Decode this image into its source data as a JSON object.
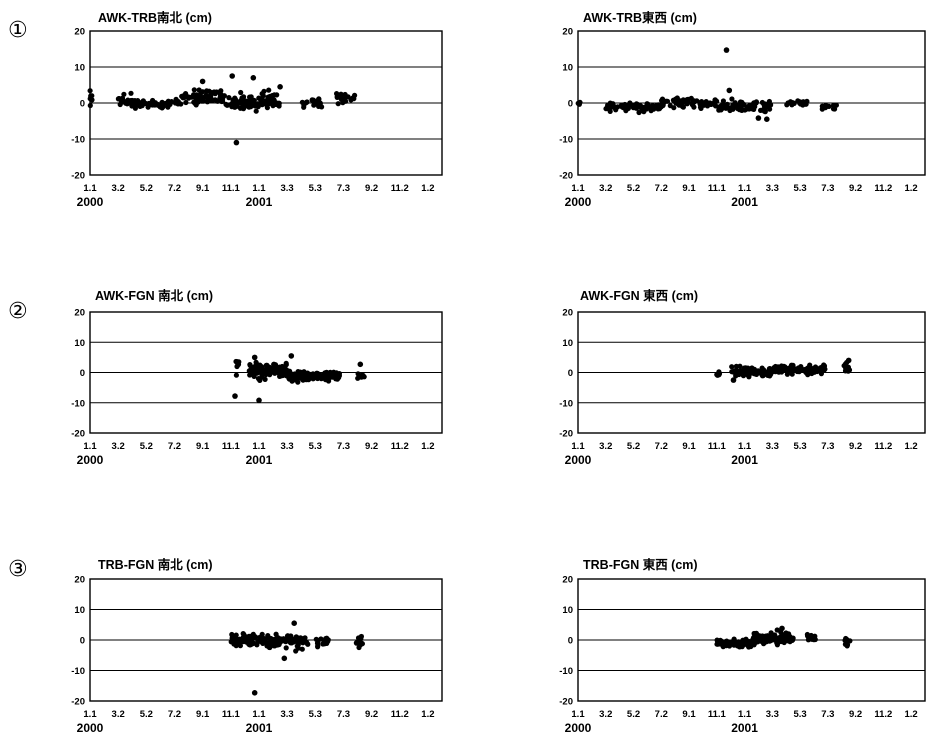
{
  "x_tick_labels": [
    "1.1",
    "3.2",
    "5.2",
    "7.2",
    "9.1",
    "11.1",
    "1.1",
    "3.3",
    "5.3",
    "7.3",
    "9.2",
    "11.2",
    "1.2"
  ],
  "y_tick_labels": [
    "20",
    "10",
    "0",
    "-10",
    "-20"
  ],
  "year_labels": [
    "2000",
    "2001"
  ],
  "panels": [
    {
      "number": "①",
      "left_title": "AWK-TRB南北 (cm)",
      "right_title": "AWK-TRB東西 (cm)"
    },
    {
      "number": "②",
      "left_title": "AWK-FGN 南北 (cm)",
      "right_title": "AWK-FGN 東西 (cm)"
    },
    {
      "number": "③",
      "left_title": "TRB-FGN 南北 (cm)",
      "right_title": "TRB-FGN 東西 (cm)"
    }
  ],
  "chart_data": [
    {
      "type": "scatter",
      "title": "AWK-TRB南北 (cm)",
      "ylim": [
        -20,
        20
      ],
      "yticks": [
        20,
        10,
        0,
        -10,
        -20
      ],
      "x_unit": "months since 2000-01-01",
      "xlim": [
        0,
        25
      ],
      "grid": "horizontal",
      "clusters": [
        {
          "from": 0,
          "to": 0.15,
          "count": 6,
          "mean": 1.5,
          "spread": 1.5
        },
        {
          "from": 2.0,
          "to": 3.0,
          "count": 18,
          "mean": 0.8,
          "spread": 1.3
        },
        {
          "from": 3.0,
          "to": 6.5,
          "count": 45,
          "mean": -0.2,
          "spread": 1.0
        },
        {
          "from": 6.5,
          "to": 9.5,
          "count": 60,
          "mean": 1.6,
          "spread": 1.4
        },
        {
          "from": 9.5,
          "to": 13.5,
          "count": 90,
          "mean": 0.4,
          "spread": 1.6
        },
        {
          "from": 14.8,
          "to": 16.5,
          "count": 22,
          "mean": 0.0,
          "spread": 1.0
        },
        {
          "from": 17.5,
          "to": 18.8,
          "count": 18,
          "mean": 1.2,
          "spread": 1.5
        }
      ],
      "outliers": [
        {
          "x": 10.4,
          "y": -11
        },
        {
          "x": 10.1,
          "y": 7.5
        },
        {
          "x": 11.6,
          "y": 7.0
        },
        {
          "x": 8.0,
          "y": 6.0
        },
        {
          "x": 13.5,
          "y": 4.5
        }
      ]
    },
    {
      "type": "scatter",
      "title": "AWK-TRB東西 (cm)",
      "ylim": [
        -20,
        20
      ],
      "yticks": [
        20,
        10,
        0,
        -10,
        -20
      ],
      "x_unit": "months since 2000-01-01",
      "xlim": [
        0,
        25
      ],
      "grid": "horizontal",
      "clusters": [
        {
          "from": 0,
          "to": 0.15,
          "count": 3,
          "mean": 0.0,
          "spread": 0.3
        },
        {
          "from": 2.0,
          "to": 6.0,
          "count": 70,
          "mean": -1.0,
          "spread": 0.9
        },
        {
          "from": 6.0,
          "to": 10.0,
          "count": 70,
          "mean": 0.0,
          "spread": 0.8
        },
        {
          "from": 10.0,
          "to": 14.0,
          "count": 80,
          "mean": -1.0,
          "spread": 1.2
        },
        {
          "from": 15.0,
          "to": 16.5,
          "count": 18,
          "mean": 0.0,
          "spread": 0.7
        },
        {
          "from": 17.5,
          "to": 18.8,
          "count": 12,
          "mean": -1.0,
          "spread": 0.7
        }
      ],
      "outliers": [
        {
          "x": 10.7,
          "y": 14.7
        },
        {
          "x": 10.9,
          "y": 3.5
        },
        {
          "x": 13.0,
          "y": -4.2
        },
        {
          "x": 13.6,
          "y": -4.5
        }
      ]
    },
    {
      "type": "scatter",
      "title": "AWK-FGN 南北 (cm)",
      "ylim": [
        -20,
        20
      ],
      "yticks": [
        20,
        10,
        0,
        -10,
        -20
      ],
      "x_unit": "months since 2000-01-01",
      "xlim": [
        0,
        25
      ],
      "grid": "horizontal",
      "clusters": [
        {
          "from": 10.3,
          "to": 10.6,
          "count": 8,
          "mean": 1.5,
          "spread": 1.8
        },
        {
          "from": 11.3,
          "to": 14.0,
          "count": 110,
          "mean": 0.5,
          "spread": 1.7
        },
        {
          "from": 14.0,
          "to": 17.8,
          "count": 100,
          "mean": -1.3,
          "spread": 1.1
        },
        {
          "from": 19.0,
          "to": 19.5,
          "count": 8,
          "mean": -1.5,
          "spread": 0.9
        }
      ],
      "outliers": [
        {
          "x": 10.3,
          "y": -7.8
        },
        {
          "x": 12.0,
          "y": -9.2
        },
        {
          "x": 11.7,
          "y": 5.0
        },
        {
          "x": 14.3,
          "y": 5.5
        },
        {
          "x": 19.2,
          "y": 2.7
        }
      ]
    },
    {
      "type": "scatter",
      "title": "AWK-FGN 東西 (cm)",
      "ylim": [
        -20,
        20
      ],
      "yticks": [
        20,
        10,
        0,
        -10,
        -20
      ],
      "x_unit": "months since 2000-01-01",
      "xlim": [
        0,
        25
      ],
      "grid": "horizontal",
      "clusters": [
        {
          "from": 9.8,
          "to": 10.3,
          "count": 5,
          "mean": -0.5,
          "spread": 0.4
        },
        {
          "from": 11.0,
          "to": 14.0,
          "count": 80,
          "mean": 0.3,
          "spread": 1.0
        },
        {
          "from": 14.0,
          "to": 17.8,
          "count": 110,
          "mean": 1.0,
          "spread": 0.9
        },
        {
          "from": 19.0,
          "to": 19.6,
          "count": 10,
          "mean": 1.5,
          "spread": 1.0
        }
      ],
      "outliers": [
        {
          "x": 11.2,
          "y": -2.5
        },
        {
          "x": 19.5,
          "y": 4.0
        }
      ]
    },
    {
      "type": "scatter",
      "title": "TRB-FGN 南北 (cm)",
      "ylim": [
        -20,
        20
      ],
      "yticks": [
        20,
        10,
        0,
        -10,
        -20
      ],
      "x_unit": "months since 2000-01-01",
      "xlim": [
        0,
        25
      ],
      "grid": "horizontal",
      "clusters": [
        {
          "from": 10.0,
          "to": 12.5,
          "count": 80,
          "mean": 0.0,
          "spread": 1.3
        },
        {
          "from": 12.5,
          "to": 15.5,
          "count": 80,
          "mean": -0.6,
          "spread": 1.4
        },
        {
          "from": 16.0,
          "to": 17.0,
          "count": 14,
          "mean": -0.8,
          "spread": 1.1
        },
        {
          "from": 18.9,
          "to": 19.4,
          "count": 12,
          "mean": -0.6,
          "spread": 1.0
        }
      ],
      "outliers": [
        {
          "x": 11.7,
          "y": -17.3
        },
        {
          "x": 14.5,
          "y": 5.5
        },
        {
          "x": 13.8,
          "y": -6.0
        }
      ]
    },
    {
      "type": "scatter",
      "title": "TRB-FGN 東西 (cm)",
      "ylim": [
        -20,
        20
      ],
      "yticks": [
        20,
        10,
        0,
        -10,
        -20
      ],
      "x_unit": "months since 2000-01-01",
      "xlim": [
        0,
        25
      ],
      "grid": "horizontal",
      "clusters": [
        {
          "from": 10.0,
          "to": 12.5,
          "count": 70,
          "mean": -1.0,
          "spread": 0.9
        },
        {
          "from": 12.5,
          "to": 15.5,
          "count": 100,
          "mean": 0.5,
          "spread": 1.3
        },
        {
          "from": 16.5,
          "to": 17.3,
          "count": 12,
          "mean": 0.5,
          "spread": 0.8
        },
        {
          "from": 19.0,
          "to": 19.6,
          "count": 10,
          "mean": -0.5,
          "spread": 1.4
        }
      ],
      "outliers": [
        {
          "x": 14.7,
          "y": 3.8
        }
      ]
    }
  ]
}
